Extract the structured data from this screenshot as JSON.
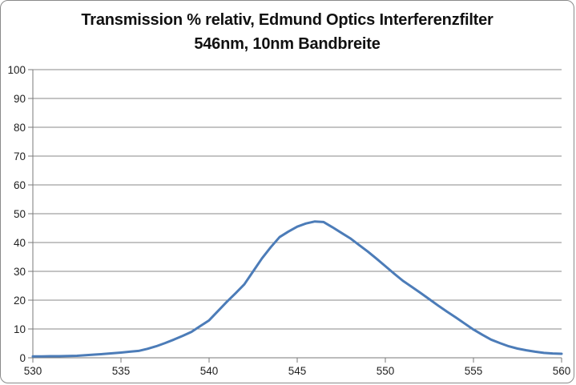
{
  "chart_data": {
    "type": "line",
    "title_lines": [
      "Transmission % relativ, Edmund Optics Interferenzfilter",
      "546nm, 10nm Bandbreite"
    ],
    "xlabel": "",
    "ylabel": "",
    "xlim": [
      530,
      560
    ],
    "ylim": [
      0,
      100
    ],
    "x_ticks": [
      530,
      535,
      540,
      545,
      550,
      555,
      560
    ],
    "y_ticks": [
      0,
      10,
      20,
      30,
      40,
      50,
      60,
      70,
      80,
      90,
      100
    ],
    "grid": "horizontal",
    "legend": "none",
    "peak": {
      "x": 546,
      "y": 47.3
    },
    "series": [
      {
        "x": [
          530,
          530.5,
          531,
          531.5,
          532,
          532.5,
          533,
          533.5,
          534,
          534.5,
          535,
          535.5,
          536,
          536.5,
          537,
          537.5,
          538,
          538.5,
          539,
          539.5,
          540,
          540.5,
          541,
          541.5,
          542,
          542.5,
          543,
          543.5,
          544,
          544.5,
          545,
          545.5,
          546,
          546.5,
          547,
          547.5,
          548,
          548.5,
          549,
          549.5,
          550,
          550.5,
          551,
          551.5,
          552,
          552.5,
          553,
          553.5,
          554,
          554.5,
          555,
          555.5,
          556,
          556.5,
          557,
          557.5,
          558,
          558.5,
          559,
          559.5,
          560
        ],
        "y": [
          0.5,
          0.5,
          0.55,
          0.55,
          0.6,
          0.7,
          0.9,
          1.1,
          1.3,
          1.55,
          1.8,
          2.1,
          2.4,
          3.1,
          4.0,
          5.1,
          6.3,
          7.6,
          9.0,
          11.0,
          13.0,
          16.2,
          19.4,
          22.4,
          25.5,
          30.0,
          34.5,
          38.4,
          41.9,
          43.8,
          45.5,
          46.6,
          47.3,
          47.1,
          45.3,
          43.4,
          41.5,
          39.2,
          36.9,
          34.4,
          31.8,
          29.2,
          26.7,
          24.6,
          22.5,
          20.3,
          18.1,
          16.0,
          14.0,
          11.9,
          9.8,
          8.0,
          6.3,
          5.1,
          4.0,
          3.2,
          2.6,
          2.1,
          1.7,
          1.5,
          1.4
        ]
      }
    ],
    "colors": {
      "line": "#4c7cb8",
      "gridline": "#8a8a8a",
      "axis": "#7a7a7a",
      "text": "#1f1f1f",
      "background": "#ffffff",
      "border": "#8a8a8a"
    }
  }
}
